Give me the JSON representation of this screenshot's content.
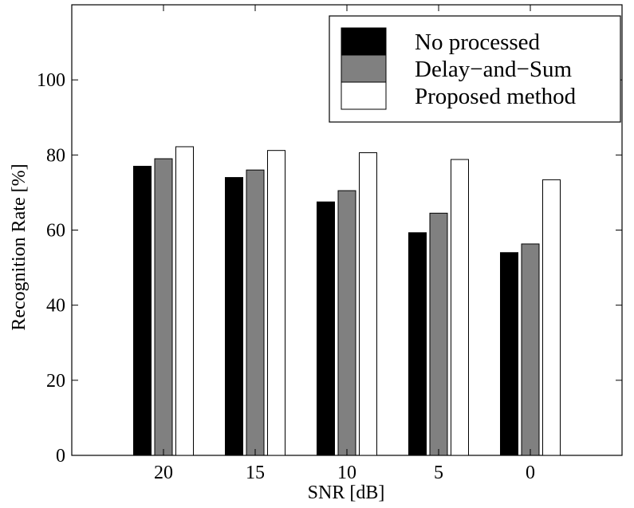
{
  "chart_data": {
    "type": "bar",
    "categories": [
      "20",
      "15",
      "10",
      "5",
      "0"
    ],
    "series": [
      {
        "name": "No processed",
        "values": [
          77.0,
          74.0,
          67.5,
          59.3,
          54.0
        ],
        "color": "#000000"
      },
      {
        "name": "Delay−and−Sum",
        "values": [
          79.0,
          76.0,
          70.5,
          64.5,
          56.3
        ],
        "color": "#808080"
      },
      {
        "name": "Proposed method",
        "values": [
          82.2,
          81.2,
          80.6,
          78.8,
          73.4
        ],
        "color": "#ffffff"
      }
    ],
    "xlabel": "SNR [dB]",
    "ylabel": "Recognition Rate [%]",
    "ylim": [
      0,
      120
    ],
    "yticks": [
      0,
      20,
      40,
      60,
      80,
      100
    ],
    "grid": false,
    "legend_position": "top-right"
  }
}
